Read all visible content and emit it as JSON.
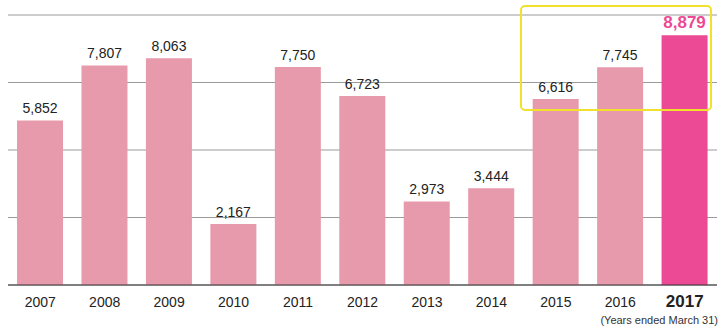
{
  "chart_data": {
    "type": "bar",
    "categories": [
      "2007",
      "2008",
      "2009",
      "2010",
      "2011",
      "2012",
      "2013",
      "2014",
      "2015",
      "2016",
      "2017"
    ],
    "values": [
      5852,
      7807,
      8063,
      2167,
      7750,
      6723,
      2973,
      3444,
      6616,
      7745,
      8879
    ],
    "value_labels": [
      "5,852",
      "7,807",
      "8,063",
      "2,167",
      "7,750",
      "6,723",
      "2,973",
      "3,444",
      "6,616",
      "7,745",
      "8,879"
    ],
    "colors": [
      "#e79aab",
      "#e79aab",
      "#e79aab",
      "#e79aab",
      "#e79aab",
      "#e79aab",
      "#e79aab",
      "#e79aab",
      "#e79aab",
      "#e79aab",
      "#ec4a94"
    ],
    "ylim": [
      0,
      9600
    ],
    "yticks": [
      0,
      2400,
      4800,
      7200,
      9600
    ],
    "grid": true,
    "data_labels": true,
    "tick_labels": "x",
    "annotations": [
      "(Years ended March 31)"
    ]
  }
}
